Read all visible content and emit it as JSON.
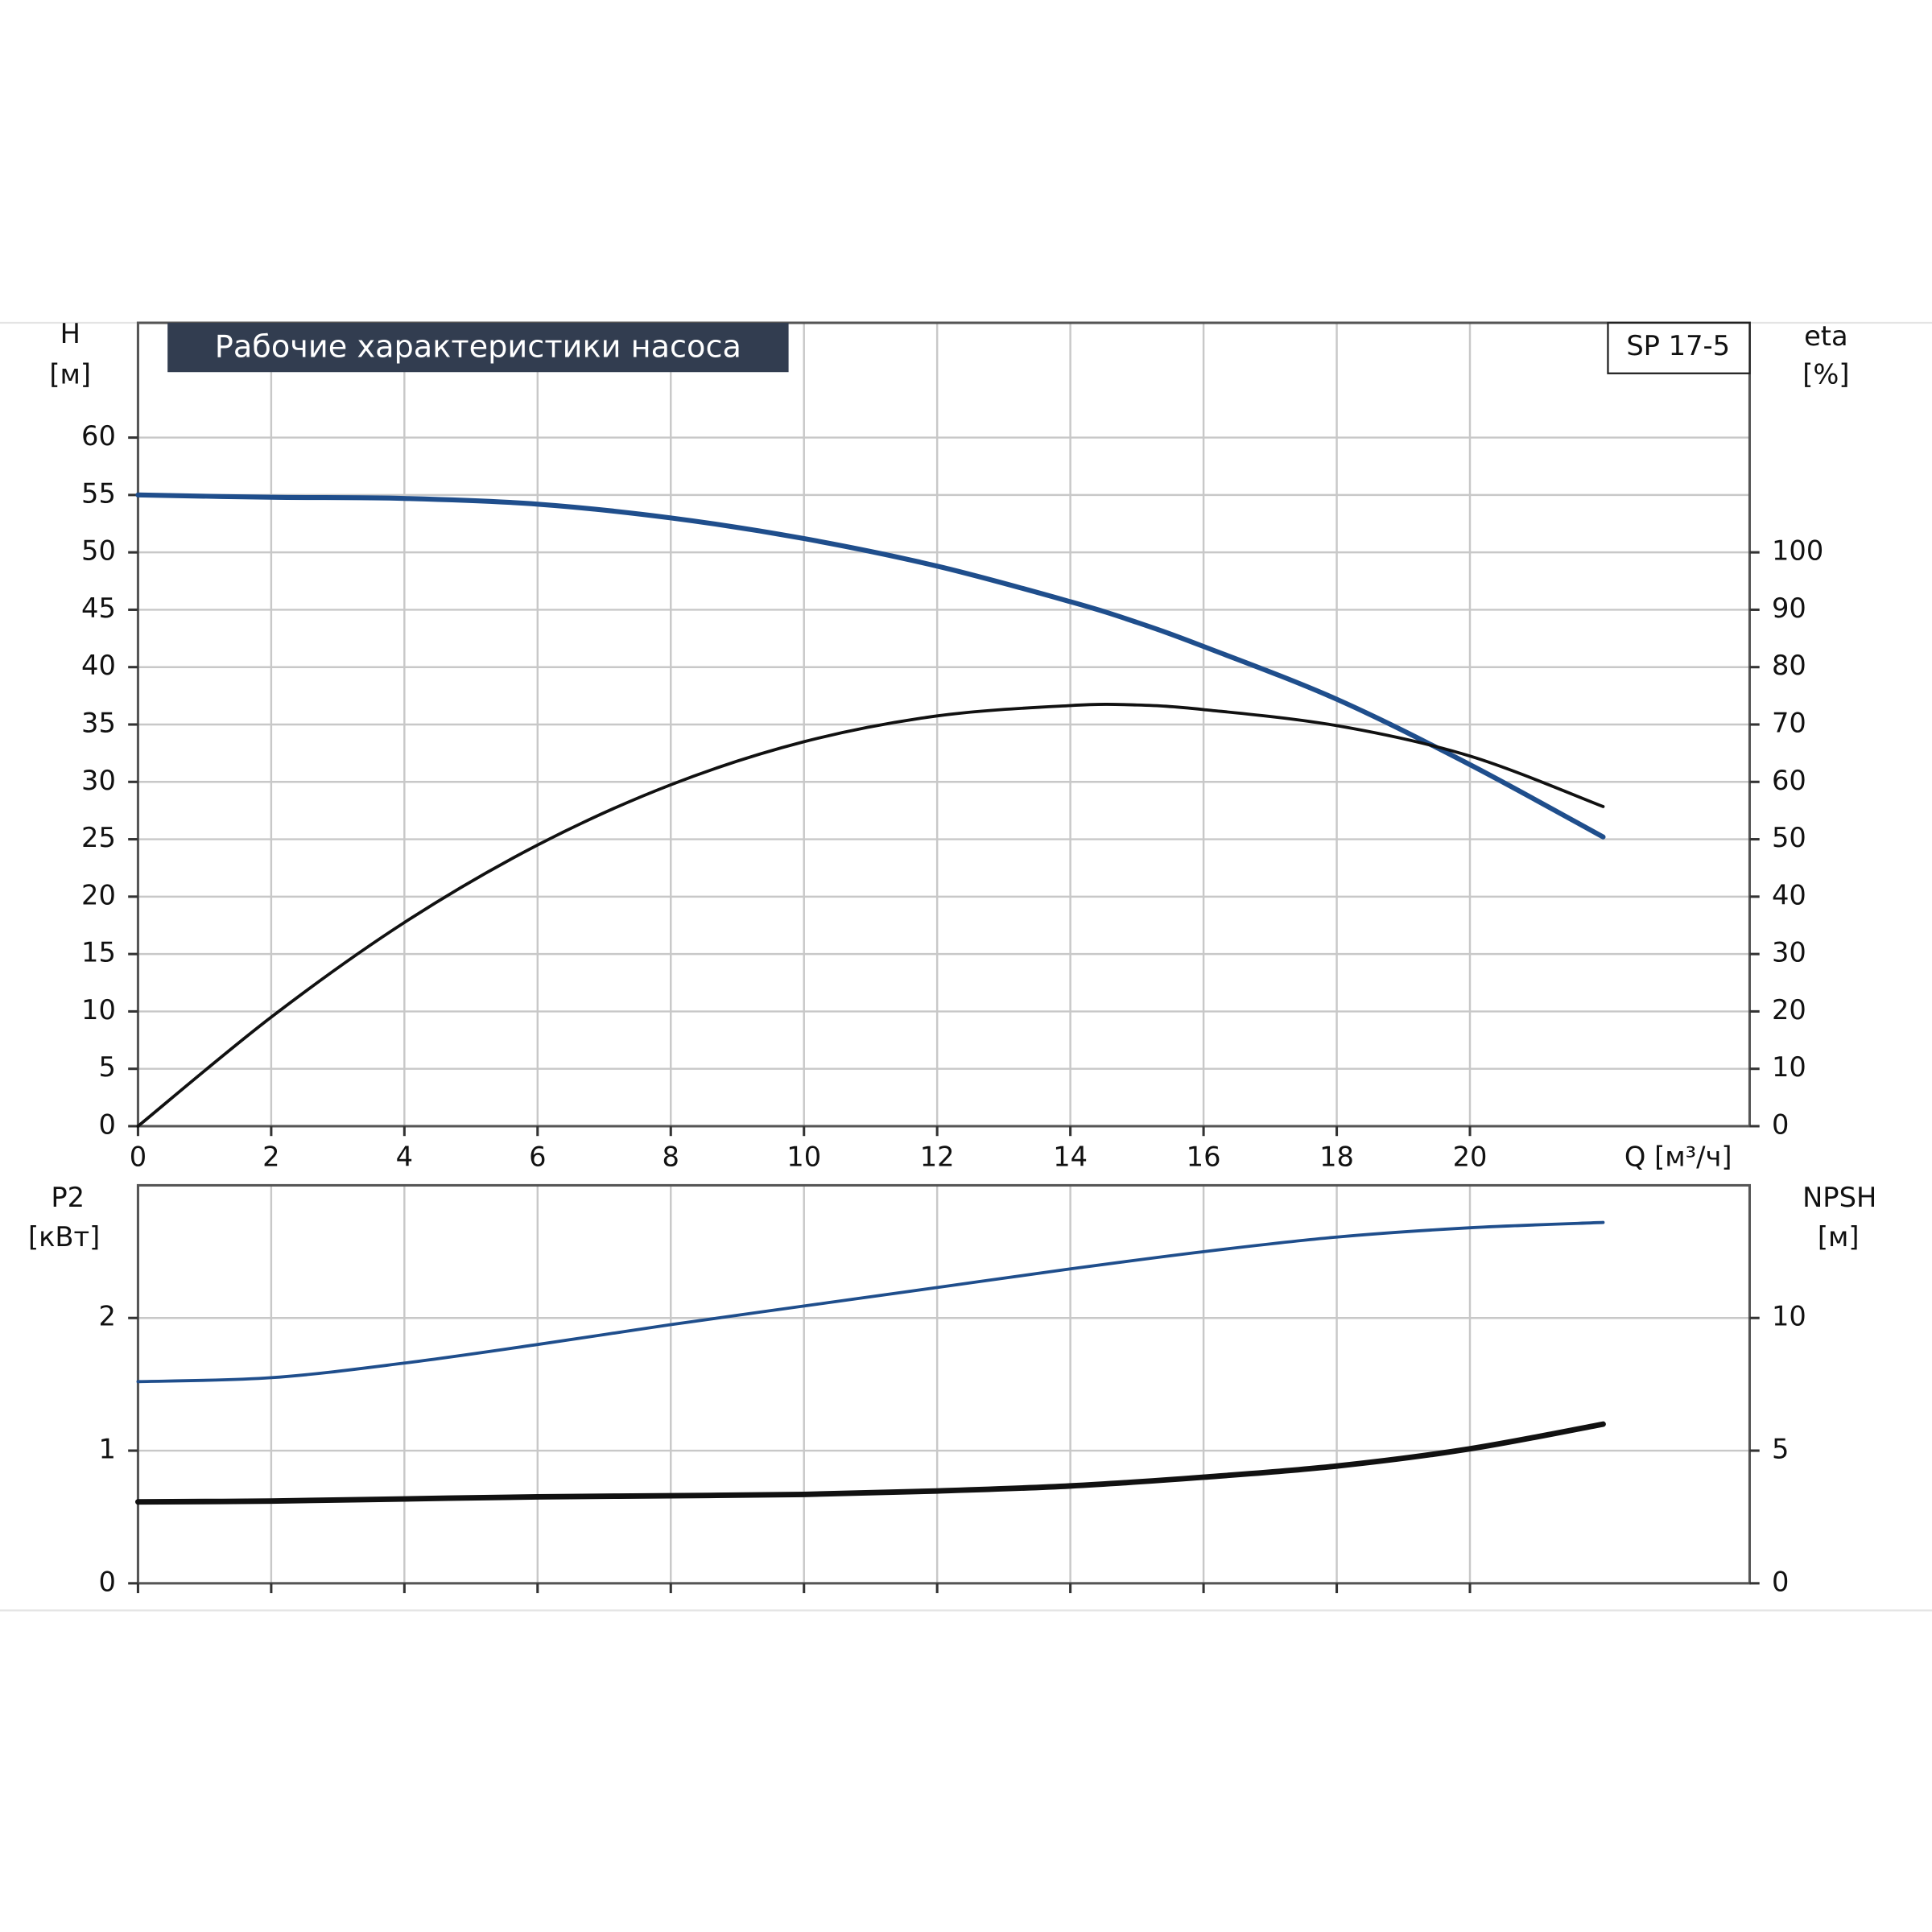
{
  "chart_data": [
    {
      "type": "line",
      "title": "Рабочие характеристики насоса",
      "annotation": "SP 17-5",
      "ylabel": "H",
      "yunit": "[м]",
      "y2label": "eta",
      "y2unit": "[%]",
      "xlabel": "Q [м³/ч]",
      "x": [
        0,
        2,
        4,
        6,
        8,
        10,
        12,
        14,
        15,
        16,
        18,
        20,
        22
      ],
      "series": [
        {
          "color": "#1f4e8c",
          "width": 4,
          "values": [
            55,
            54.8,
            54.7,
            54.2,
            53,
            51.2,
            48.8,
            45.7,
            43.9,
            41.8,
            37.2,
            31.5,
            25.2
          ]
        },
        {
          "color": "#111111",
          "width": 2.5,
          "axis": "y2",
          "values": [
            0,
            19,
            35.5,
            49,
            59.5,
            67,
            71.5,
            73.3,
            73.4,
            72.6,
            69.8,
            64.5,
            55.7
          ]
        }
      ],
      "xlim": [
        0,
        24.2
      ],
      "xticks": [
        0,
        2,
        4,
        6,
        8,
        10,
        12,
        14,
        16,
        18,
        20
      ],
      "ylim": [
        0,
        70
      ],
      "yticks": [
        0,
        5,
        10,
        15,
        20,
        25,
        30,
        35,
        40,
        45,
        50,
        55,
        60
      ],
      "y2lim": [
        0,
        140
      ],
      "y2ticks": [
        0,
        10,
        20,
        30,
        40,
        50,
        60,
        70,
        80,
        90,
        100
      ],
      "grid": true
    },
    {
      "type": "line",
      "ylabel": "P2",
      "yunit": "[кВт]",
      "y2label": "NPSH",
      "y2unit": "[м]",
      "x": [
        0,
        2,
        4,
        6,
        8,
        10,
        12,
        14,
        16,
        18,
        20,
        22
      ],
      "series": [
        {
          "color": "#1f4e8c",
          "width": 2.5,
          "values": [
            1.52,
            1.55,
            1.66,
            1.8,
            1.95,
            2.09,
            2.23,
            2.37,
            2.5,
            2.61,
            2.68,
            2.72
          ]
        },
        {
          "color": "#111111",
          "width": 4.5,
          "axis": "y2",
          "values": [
            3.07,
            3.1,
            3.18,
            3.26,
            3.3,
            3.35,
            3.48,
            3.67,
            4.0,
            4.42,
            5.07,
            6.0
          ]
        }
      ],
      "xlim": [
        0,
        24.2
      ],
      "xticks": [
        0,
        2,
        4,
        6,
        8,
        10,
        12,
        14,
        16,
        18,
        20
      ],
      "ylim": [
        0,
        3
      ],
      "yticks": [
        0,
        1,
        2
      ],
      "y2lim": [
        0,
        15
      ],
      "y2ticks": [
        0,
        5,
        10
      ],
      "grid": true
    }
  ]
}
